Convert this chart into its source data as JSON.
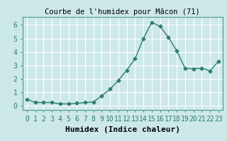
{
  "x": [
    0,
    1,
    2,
    3,
    4,
    5,
    6,
    7,
    8,
    9,
    10,
    11,
    12,
    13,
    14,
    15,
    16,
    17,
    18,
    19,
    20,
    21,
    22,
    23
  ],
  "y": [
    0.5,
    0.25,
    0.25,
    0.25,
    0.15,
    0.15,
    0.2,
    0.25,
    0.3,
    0.75,
    1.25,
    1.9,
    2.65,
    3.5,
    5.0,
    6.2,
    5.9,
    5.1,
    4.1,
    2.8,
    2.75,
    2.8,
    2.6,
    3.3
  ],
  "line_color": "#2e7d6e",
  "marker": "D",
  "marker_size": 2.5,
  "bg_color": "#cde8e8",
  "grid_color": "#ffffff",
  "title": "Courbe de l'humidex pour Mâcon (71)",
  "xlabel": "Humidex (Indice chaleur)",
  "ylabel": "",
  "xlim": [
    -0.5,
    23.5
  ],
  "ylim": [
    -0.3,
    6.6
  ],
  "yticks": [
    0,
    1,
    2,
    3,
    4,
    5,
    6
  ],
  "xtick_labels": [
    "0",
    "1",
    "2",
    "3",
    "4",
    "5",
    "6",
    "7",
    "8",
    "9",
    "10",
    "11",
    "12",
    "13",
    "14",
    "15",
    "16",
    "17",
    "18",
    "19",
    "20",
    "21",
    "22",
    "23"
  ],
  "title_fontsize": 7.5,
  "label_fontsize": 8,
  "tick_fontsize": 7
}
